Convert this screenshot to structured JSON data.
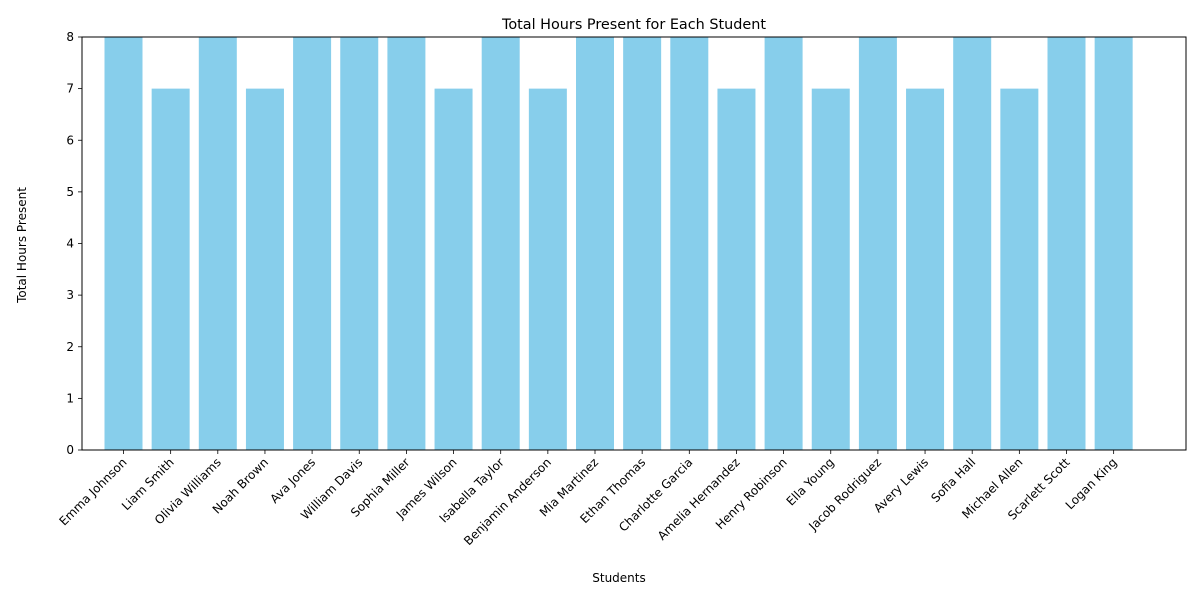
{
  "chart_data": {
    "type": "bar",
    "title": "Total Hours Present for Each Student",
    "xlabel": "Students",
    "ylabel": "Total Hours Present",
    "categories": [
      "Emma Johnson",
      "Liam Smith",
      "Olivia Williams",
      "Noah Brown",
      "Ava Jones",
      "William Davis",
      "Sophia Miller",
      "James Wilson",
      "Isabella Taylor",
      "Benjamin Anderson",
      "Mia Martinez",
      "Ethan Thomas",
      "Charlotte Garcia",
      "Amelia Hernandez",
      "Henry Robinson",
      "Ella Young",
      "Jacob Rodriguez",
      "Avery Lewis",
      "Sofia Hall",
      "Michael Allen",
      "Scarlett Scott",
      "Logan King"
    ],
    "values": [
      8,
      7,
      8,
      7,
      8,
      8,
      8,
      7,
      8,
      7,
      8,
      8,
      8,
      7,
      8,
      7,
      8,
      7,
      8,
      7,
      8,
      8
    ],
    "ylim": [
      0,
      8
    ],
    "yticks": [
      "0",
      "1",
      "2",
      "3",
      "4",
      "5",
      "6",
      "7",
      "8"
    ],
    "bar_color": "#87ceeb",
    "grid": false,
    "legend": "none"
  }
}
